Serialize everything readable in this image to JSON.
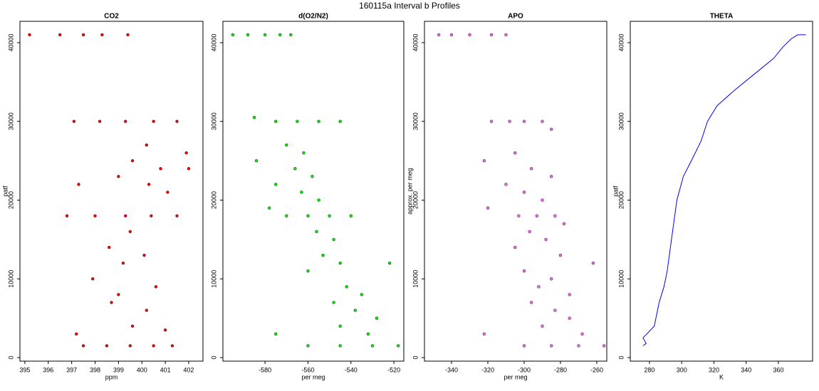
{
  "title": "160115a   Interval b Profiles",
  "chart_data": [
    {
      "type": "scatter",
      "title": "CO2",
      "xlabel": "ppm",
      "ylabel": "patf",
      "color": "#ff0000",
      "x": [
        395.2,
        396.5,
        397.5,
        398.3,
        399.4,
        397.1,
        398.2,
        399.3,
        400.5,
        401.5,
        401.9,
        400.2,
        399.6,
        400.8,
        402.0,
        399.0,
        400.3,
        401.1,
        397.3,
        396.8,
        398.0,
        399.3,
        400.4,
        401.5,
        399.5,
        398.6,
        400.1,
        399.2,
        397.9,
        400.6,
        399.0,
        398.7,
        400.2,
        399.6,
        397.2,
        401.0,
        397.5,
        398.5,
        399.5,
        400.5,
        401.3
      ],
      "values": [
        41000,
        41000,
        41000,
        41000,
        41000,
        30000,
        30000,
        30000,
        30000,
        30000,
        26000,
        27000,
        25000,
        24000,
        24000,
        23000,
        22000,
        21000,
        22000,
        18000,
        18000,
        18000,
        18000,
        18000,
        16000,
        14000,
        13000,
        12000,
        10000,
        9000,
        8000,
        7000,
        6000,
        4000,
        3000,
        3500,
        1500,
        1500,
        1500,
        1500,
        1500
      ],
      "xlim": [
        394.79,
        402.61
      ],
      "ylim": [
        -451,
        42709
      ],
      "xticks": [
        395,
        396,
        397,
        398,
        399,
        400,
        401,
        402
      ],
      "yticks": [
        0,
        10000,
        20000,
        30000,
        40000
      ]
    },
    {
      "type": "scatter",
      "title": "d(O2/N2)",
      "xlabel": "per meg",
      "color": "#00ee00",
      "x": [
        -595,
        -588,
        -580,
        -573,
        -568,
        -585,
        -575,
        -565,
        -555,
        -545,
        -570,
        -562,
        -584,
        -566,
        -558,
        -575,
        -563,
        -555,
        -578,
        -570,
        -560,
        -550,
        -540,
        -556,
        -548,
        -553,
        -545,
        -522,
        -560,
        -542,
        -535,
        -548,
        -538,
        -528,
        -545,
        -575,
        -532,
        -560,
        -545,
        -530,
        -518
      ],
      "values": [
        41000,
        41000,
        41000,
        41000,
        41000,
        30500,
        30000,
        30000,
        30000,
        30000,
        27000,
        26000,
        25000,
        24000,
        23000,
        22000,
        21000,
        20000,
        19000,
        18000,
        18000,
        18000,
        18000,
        16000,
        15000,
        13000,
        12000,
        12000,
        11000,
        9000,
        8000,
        7000,
        6000,
        5000,
        4000,
        3000,
        3000,
        1500,
        1500,
        1500,
        1500
      ],
      "xlim": [
        -599.6,
        -515.4
      ],
      "ylim": [
        -451,
        42709
      ],
      "xticks": [
        -580,
        -560,
        -540,
        -520
      ],
      "yticks": [
        0,
        10000,
        20000,
        30000,
        40000
      ]
    },
    {
      "type": "scatter",
      "title": "APO",
      "xlabel": "per meg",
      "ylabel": "approx. per meg",
      "color": "#ee66ee",
      "x": [
        -347,
        -340,
        -330,
        -318,
        -310,
        -318,
        -308,
        -300,
        -290,
        -285,
        -322,
        -305,
        -296,
        -285,
        -310,
        -300,
        -290,
        -320,
        -303,
        -293,
        -283,
        -278,
        -297,
        -288,
        -305,
        -280,
        -262,
        -300,
        -285,
        -292,
        -275,
        -296,
        -283,
        -275,
        -290,
        -322,
        -268,
        -300,
        -285,
        -270,
        -256
      ],
      "values": [
        41000,
        41000,
        41000,
        41000,
        41000,
        30000,
        30000,
        30000,
        30000,
        29000,
        25000,
        26000,
        24000,
        23000,
        22000,
        21000,
        20000,
        19000,
        18000,
        18000,
        18000,
        17000,
        16000,
        15000,
        14000,
        13000,
        12000,
        11000,
        10000,
        9000,
        8000,
        7000,
        6000,
        5000,
        4000,
        3000,
        3000,
        1500,
        1500,
        1500,
        1500
      ],
      "xlim": [
        -354.9,
        -254.5
      ],
      "ylim": [
        -451,
        42709
      ],
      "xticks": [
        -340,
        -320,
        -300,
        -280,
        -260
      ],
      "yticks": [
        0,
        10000,
        20000,
        30000,
        40000
      ]
    },
    {
      "type": "line",
      "title": "THETA",
      "xlabel": "K",
      "ylabel": "patf",
      "color": "#0000ff",
      "x": [
        276,
        278,
        276,
        283,
        286,
        289,
        291,
        293,
        295,
        297,
        301,
        306,
        312,
        316,
        322,
        333,
        345,
        357,
        363,
        368,
        372,
        377
      ],
      "values": [
        1500,
        1800,
        2500,
        4000,
        7000,
        9000,
        11000,
        14000,
        17000,
        20000,
        23000,
        25000,
        27500,
        30000,
        32000,
        34000,
        36000,
        38000,
        39500,
        40500,
        41000,
        41000
      ],
      "xlim": [
        268.1,
        381.2
      ],
      "ylim": [
        -451,
        42709
      ],
      "xticks": [
        280,
        300,
        320,
        340,
        360
      ],
      "yticks": [
        0,
        10000,
        20000,
        30000,
        40000
      ]
    }
  ]
}
